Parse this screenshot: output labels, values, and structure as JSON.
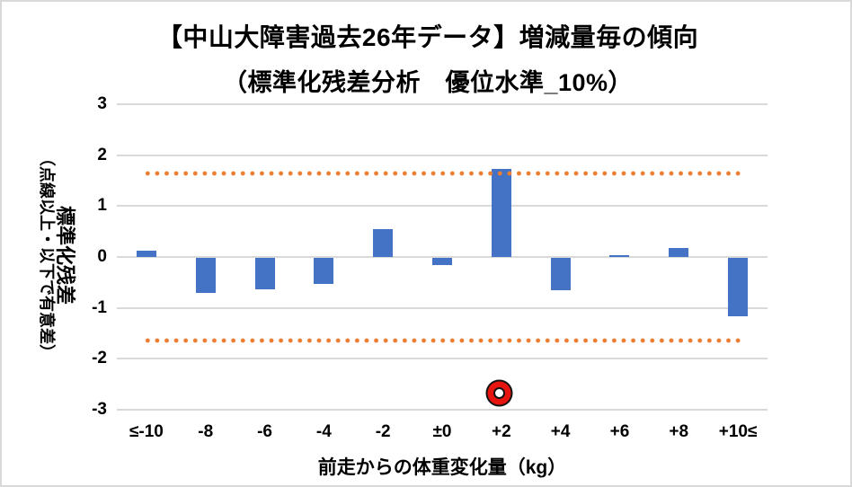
{
  "title": {
    "line1": "【中山大障害過去26年データ】増減量毎の傾向",
    "line2": "（標準化残差分析　優位水準_10%）"
  },
  "y_axis": {
    "title_line1": "標準化残差",
    "title_line2": "（点線以上・以下で有意差）",
    "ticks": [
      "3",
      "2",
      "1",
      "0",
      "-1",
      "-2",
      "-3"
    ],
    "tick_values": [
      3,
      2,
      1,
      0,
      -1,
      -2,
      -3
    ]
  },
  "x_axis": {
    "title": "前走からの体重変化量（kg）"
  },
  "colors": {
    "bar": "#4472C4",
    "dotted_line": "#ED7D31",
    "gridline": "#D9D9D9",
    "marker_red": "#E8140F",
    "marker_outline": "#141414",
    "text": "#000000"
  },
  "chart_data": {
    "type": "bar",
    "title": "【中山大障害過去26年データ】増減量毎の傾向（標準化残差分析　優位水準_10%）",
    "categories": [
      "≤-10",
      "-8",
      "-6",
      "-4",
      "-2",
      "±0",
      "+2",
      "+4",
      "+6",
      "+8",
      "+10≤"
    ],
    "values": [
      0.12,
      -0.68,
      -0.62,
      -0.51,
      0.54,
      -0.14,
      1.73,
      -0.63,
      0.04,
      0.17,
      -1.15
    ],
    "xlabel": "前走からの体重変化量（kg）",
    "ylabel": "標準化残差（点線以上・以下で有意差）",
    "ylim": [
      -3,
      3
    ],
    "grid": true,
    "legend": false,
    "significance_lines": {
      "values": [
        1.645,
        -1.645
      ],
      "style": "dotted",
      "color": "#ED7D31"
    },
    "highlight_marker": {
      "category": "+2",
      "y": -2.7,
      "shape": "ring",
      "color": "#E8140F"
    }
  }
}
